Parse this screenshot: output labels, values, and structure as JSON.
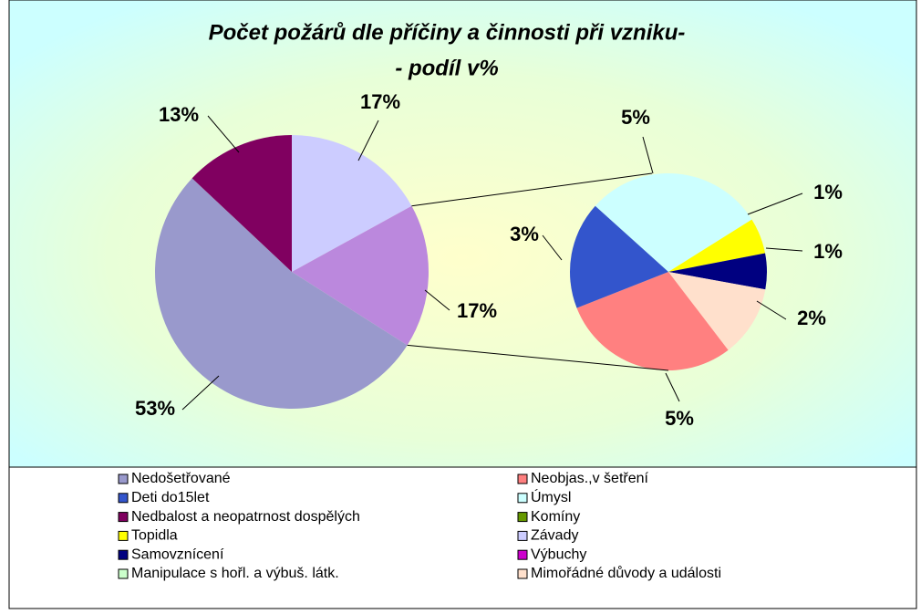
{
  "chart_data": {
    "type": "pie-of-pie",
    "title": [
      "Počet požárů dle příčiny a činnosti při vzniku-",
      "- podíl v%"
    ],
    "categories": [
      "Nedošetřované",
      "Neobjas.,v šetření",
      "Deti do15let",
      "Úmysl",
      "Nedbalost a neopatrnost dospělých",
      "Komíny",
      "Topidla",
      "Závady",
      "Samovznícení",
      "Výbuchy",
      "Manipulace s hořl. a výbuš. látk.",
      "Mimořádné důvody a události"
    ],
    "values": [
      53,
      5,
      3,
      5,
      13,
      0,
      1,
      17,
      1,
      0,
      0,
      2
    ],
    "value_labels": [
      "53%",
      "5%",
      "3%",
      "5%",
      "13%",
      null,
      "1%",
      "17%",
      "1%",
      null,
      null,
      "2%"
    ],
    "colors": [
      "#9999cc",
      "#ff8080",
      "#3355cc",
      "#ccffff",
      "#800060",
      "#669900",
      "#ffff00",
      "#ccccff",
      "#000080",
      "#cc00cc",
      "#ccffcc",
      "#ffe0cc"
    ],
    "other_value": 17,
    "other_label": "17%",
    "other_color": "#bb88dd"
  }
}
